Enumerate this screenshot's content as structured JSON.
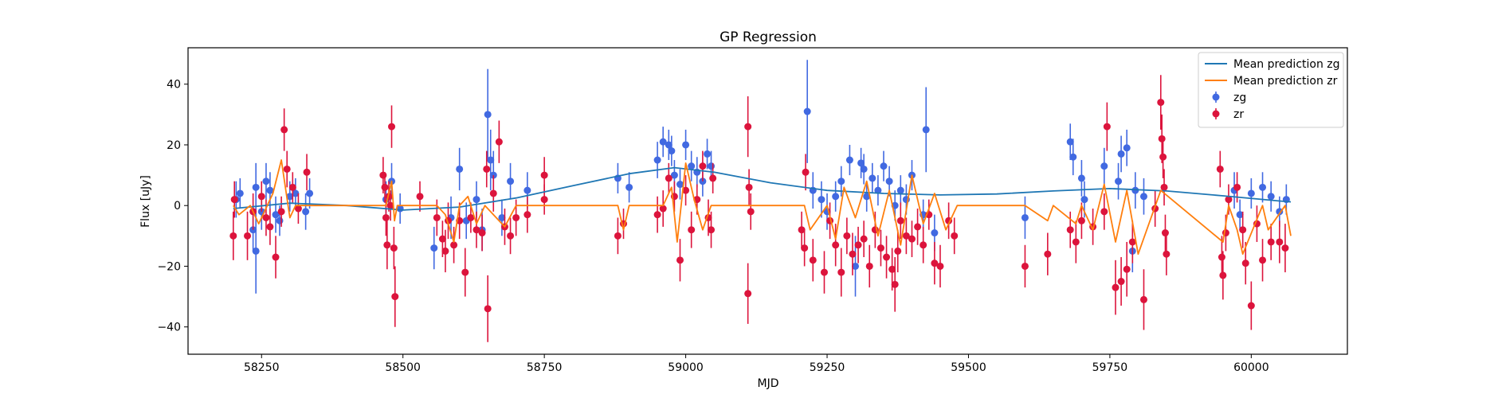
{
  "chart_data": {
    "type": "scatter",
    "title": "GP Regression",
    "xlabel": "MJD",
    "ylabel": "Flux [uJy]",
    "xlim": [
      58120,
      60170
    ],
    "ylim": [
      -49,
      52
    ],
    "xticks": [
      58250,
      58500,
      58750,
      59000,
      59250,
      59500,
      59750,
      60000
    ],
    "yticks": [
      -40,
      -20,
      0,
      20,
      40
    ],
    "grid": false,
    "legend_position": "top-right",
    "series": [
      {
        "name": "Mean prediction zg",
        "kind": "line",
        "color": "#1f77b4",
        "x": [
          58200,
          58300,
          58400,
          58500,
          58600,
          58700,
          58800,
          58900,
          58980,
          59050,
          59150,
          59250,
          59350,
          59450,
          59550,
          59650,
          59750,
          59850,
          59950,
          60050,
          60070
        ],
        "y": [
          -1.0,
          0.8,
          0.0,
          -1.5,
          -0.5,
          2.5,
          6.5,
          10.5,
          12.5,
          11.0,
          7.5,
          5.0,
          4.0,
          3.5,
          3.8,
          4.8,
          5.6,
          4.8,
          3.2,
          1.5,
          1.2
        ]
      },
      {
        "name": "Mean prediction zr",
        "kind": "line",
        "color": "#ff7f0e",
        "x": [
          58200,
          58210,
          58230,
          58245,
          58260,
          58270,
          58285,
          58300,
          58310,
          58330,
          58470,
          58480,
          58485,
          58490,
          58560,
          58575,
          58590,
          58600,
          58615,
          58630,
          58645,
          58660,
          58680,
          58700,
          58880,
          58890,
          58900,
          58960,
          58975,
          58985,
          59000,
          59015,
          59030,
          59045,
          59210,
          59220,
          59250,
          59265,
          59280,
          59300,
          59320,
          59340,
          59360,
          59380,
          59400,
          59420,
          59440,
          59460,
          59480,
          59600,
          59640,
          59650,
          59690,
          59700,
          59720,
          59740,
          59760,
          59780,
          59800,
          59840,
          59950,
          59960,
          59975,
          59985,
          60020,
          60030,
          60060,
          60070
        ],
        "y": [
          0,
          -3,
          0,
          -6,
          0,
          4,
          15,
          -4,
          0,
          0,
          0,
          8,
          -5,
          0,
          0,
          -3,
          -12,
          0,
          3,
          -6,
          0,
          -3,
          -7,
          0,
          0,
          -8,
          0,
          0,
          6,
          -12,
          14,
          2,
          -8,
          0,
          0,
          -8,
          0,
          -11,
          6,
          -4,
          8,
          -10,
          5,
          -13,
          10,
          -6,
          4,
          -8,
          0,
          0,
          -5,
          0,
          -6,
          0,
          -8,
          7,
          -12,
          5,
          -16,
          5,
          -12,
          0,
          -8,
          -16,
          0,
          -8,
          0,
          -10
        ]
      },
      {
        "name": "zg",
        "kind": "errorbar",
        "color": "#4169e1",
        "points": [
          [
            58205,
            2,
            6
          ],
          [
            58212,
            4,
            5
          ],
          [
            58235,
            -8,
            7
          ],
          [
            58240,
            -15,
            14
          ],
          [
            58240,
            6,
            8
          ],
          [
            58250,
            -2,
            6
          ],
          [
            58258,
            8,
            6
          ],
          [
            58265,
            5,
            6
          ],
          [
            58275,
            -3,
            6
          ],
          [
            58282,
            -5,
            5
          ],
          [
            58300,
            3,
            5
          ],
          [
            58310,
            4,
            5
          ],
          [
            58328,
            -2,
            6
          ],
          [
            58335,
            4,
            5
          ],
          [
            58470,
            2,
            6
          ],
          [
            58480,
            8,
            6
          ],
          [
            58495,
            -1,
            5
          ],
          [
            58555,
            -14,
            7
          ],
          [
            58585,
            -4,
            7
          ],
          [
            58600,
            12,
            7
          ],
          [
            58612,
            -5,
            6
          ],
          [
            58630,
            2,
            6
          ],
          [
            58640,
            -8,
            7
          ],
          [
            58650,
            30,
            15
          ],
          [
            58655,
            15,
            10
          ],
          [
            58660,
            10,
            8
          ],
          [
            58675,
            -4,
            6
          ],
          [
            58690,
            8,
            6
          ],
          [
            58720,
            5,
            6
          ],
          [
            58880,
            9,
            5
          ],
          [
            58900,
            6,
            5
          ],
          [
            58950,
            15,
            6
          ],
          [
            58960,
            21,
            5
          ],
          [
            58970,
            20,
            5
          ],
          [
            58975,
            18,
            5
          ],
          [
            58980,
            10,
            5
          ],
          [
            58990,
            7,
            5
          ],
          [
            59000,
            20,
            5
          ],
          [
            59010,
            13,
            5
          ],
          [
            59020,
            11,
            5
          ],
          [
            59030,
            8,
            5
          ],
          [
            59038,
            17,
            5
          ],
          [
            59045,
            13,
            5
          ],
          [
            59215,
            31,
            17
          ],
          [
            59225,
            5,
            6
          ],
          [
            59240,
            2,
            6
          ],
          [
            59250,
            -2,
            6
          ],
          [
            59265,
            3,
            5
          ],
          [
            59275,
            8,
            5
          ],
          [
            59290,
            15,
            5
          ],
          [
            59300,
            -20,
            10
          ],
          [
            59310,
            14,
            5
          ],
          [
            59315,
            12,
            5
          ],
          [
            59320,
            3,
            5
          ],
          [
            59330,
            9,
            5
          ],
          [
            59340,
            5,
            5
          ],
          [
            59350,
            13,
            5
          ],
          [
            59360,
            8,
            5
          ],
          [
            59370,
            0,
            5
          ],
          [
            59380,
            5,
            5
          ],
          [
            59390,
            2,
            5
          ],
          [
            59400,
            10,
            5
          ],
          [
            59420,
            -3,
            5
          ],
          [
            59425,
            25,
            14
          ],
          [
            59440,
            -9,
            6
          ],
          [
            59600,
            -4,
            7
          ],
          [
            59680,
            21,
            6
          ],
          [
            59685,
            16,
            6
          ],
          [
            59700,
            9,
            6
          ],
          [
            59705,
            2,
            6
          ],
          [
            59740,
            13,
            6
          ],
          [
            59765,
            8,
            6
          ],
          [
            59770,
            17,
            6
          ],
          [
            59780,
            19,
            6
          ],
          [
            59790,
            -15,
            7
          ],
          [
            59795,
            5,
            6
          ],
          [
            59810,
            3,
            6
          ],
          [
            59970,
            5,
            6
          ],
          [
            59980,
            -3,
            5
          ],
          [
            60000,
            4,
            5
          ],
          [
            60020,
            6,
            5
          ],
          [
            60035,
            3,
            5
          ],
          [
            60050,
            -2,
            5
          ],
          [
            60062,
            2,
            5
          ]
        ]
      },
      {
        "name": "zr",
        "kind": "errorbar",
        "color": "#dc143c",
        "points": [
          [
            58200,
            -10,
            8
          ],
          [
            58202,
            2,
            6
          ],
          [
            58225,
            -10,
            8
          ],
          [
            58235,
            -2,
            6
          ],
          [
            58250,
            3,
            5
          ],
          [
            58258,
            -4,
            6
          ],
          [
            58265,
            -7,
            6
          ],
          [
            58275,
            -17,
            7
          ],
          [
            58285,
            -2,
            5
          ],
          [
            58290,
            25,
            7
          ],
          [
            58295,
            12,
            6
          ],
          [
            58305,
            6,
            5
          ],
          [
            58315,
            -1,
            5
          ],
          [
            58330,
            11,
            6
          ],
          [
            58465,
            10,
            6
          ],
          [
            58468,
            6,
            5
          ],
          [
            58470,
            -4,
            6
          ],
          [
            58472,
            -13,
            8
          ],
          [
            58475,
            3,
            5
          ],
          [
            58478,
            0,
            5
          ],
          [
            58480,
            26,
            7
          ],
          [
            58484,
            -14,
            7
          ],
          [
            58486,
            -30,
            10
          ],
          [
            58530,
            3,
            5
          ],
          [
            58560,
            -4,
            6
          ],
          [
            58570,
            -11,
            6
          ],
          [
            58575,
            -15,
            7
          ],
          [
            58580,
            -5,
            6
          ],
          [
            58590,
            -13,
            6
          ],
          [
            58600,
            -5,
            6
          ],
          [
            58610,
            -22,
            8
          ],
          [
            58620,
            -4,
            5
          ],
          [
            58630,
            -8,
            6
          ],
          [
            58640,
            -9,
            6
          ],
          [
            58648,
            12,
            6
          ],
          [
            58650,
            -34,
            11
          ],
          [
            58660,
            4,
            6
          ],
          [
            58670,
            21,
            7
          ],
          [
            58680,
            -7,
            6
          ],
          [
            58690,
            -10,
            6
          ],
          [
            58700,
            -4,
            6
          ],
          [
            58720,
            -3,
            6
          ],
          [
            58750,
            2,
            5
          ],
          [
            58750,
            10,
            6
          ],
          [
            58880,
            -10,
            6
          ],
          [
            58890,
            -6,
            5
          ],
          [
            58950,
            -3,
            6
          ],
          [
            58960,
            -1,
            6
          ],
          [
            58970,
            9,
            5
          ],
          [
            58980,
            3,
            5
          ],
          [
            58990,
            -18,
            7
          ],
          [
            59000,
            5,
            5
          ],
          [
            59010,
            -8,
            6
          ],
          [
            59020,
            2,
            5
          ],
          [
            59030,
            13,
            5
          ],
          [
            59040,
            -4,
            6
          ],
          [
            59045,
            -8,
            6
          ],
          [
            59048,
            9,
            5
          ],
          [
            59110,
            26,
            10
          ],
          [
            59112,
            6,
            6
          ],
          [
            59115,
            -2,
            6
          ],
          [
            59110,
            -29,
            10
          ],
          [
            59205,
            -8,
            6
          ],
          [
            59210,
            -14,
            6
          ],
          [
            59212,
            11,
            6
          ],
          [
            59225,
            -18,
            7
          ],
          [
            59245,
            -22,
            7
          ],
          [
            59255,
            -5,
            6
          ],
          [
            59265,
            -13,
            7
          ],
          [
            59275,
            -22,
            8
          ],
          [
            59285,
            -10,
            6
          ],
          [
            59295,
            -16,
            7
          ],
          [
            59305,
            -13,
            6
          ],
          [
            59315,
            -11,
            6
          ],
          [
            59325,
            -20,
            7
          ],
          [
            59335,
            -8,
            6
          ],
          [
            59345,
            -14,
            6
          ],
          [
            59355,
            -17,
            7
          ],
          [
            59365,
            -21,
            7
          ],
          [
            59370,
            -26,
            9
          ],
          [
            59375,
            -15,
            7
          ],
          [
            59380,
            -5,
            6
          ],
          [
            59390,
            -10,
            6
          ],
          [
            59400,
            -11,
            6
          ],
          [
            59410,
            -7,
            6
          ],
          [
            59420,
            -13,
            6
          ],
          [
            59430,
            -3,
            5
          ],
          [
            59440,
            -19,
            7
          ],
          [
            59450,
            -20,
            7
          ],
          [
            59465,
            -5,
            6
          ],
          [
            59475,
            -10,
            6
          ],
          [
            59600,
            -20,
            7
          ],
          [
            59640,
            -16,
            7
          ],
          [
            59680,
            -8,
            6
          ],
          [
            59690,
            -12,
            7
          ],
          [
            59700,
            -5,
            6
          ],
          [
            59720,
            -7,
            6
          ],
          [
            59740,
            -2,
            6
          ],
          [
            59745,
            26,
            8
          ],
          [
            59760,
            -27,
            9
          ],
          [
            59770,
            -25,
            8
          ],
          [
            59780,
            -21,
            9
          ],
          [
            59790,
            -12,
            7
          ],
          [
            59810,
            -31,
            10
          ],
          [
            59830,
            -1,
            6
          ],
          [
            59840,
            34,
            9
          ],
          [
            59842,
            22,
            8
          ],
          [
            59844,
            16,
            7
          ],
          [
            59846,
            6,
            6
          ],
          [
            59848,
            -9,
            6
          ],
          [
            59850,
            -16,
            7
          ],
          [
            59945,
            12,
            6
          ],
          [
            59948,
            -17,
            7
          ],
          [
            59950,
            -23,
            8
          ],
          [
            59955,
            -9,
            6
          ],
          [
            59960,
            2,
            5
          ],
          [
            59975,
            6,
            5
          ],
          [
            59985,
            -8,
            6
          ],
          [
            59990,
            -19,
            7
          ],
          [
            60000,
            -33,
            8
          ],
          [
            60010,
            -6,
            6
          ],
          [
            60020,
            -18,
            7
          ],
          [
            60035,
            -12,
            6
          ],
          [
            60050,
            -12,
            7
          ],
          [
            60060,
            -14,
            8
          ]
        ]
      }
    ]
  }
}
